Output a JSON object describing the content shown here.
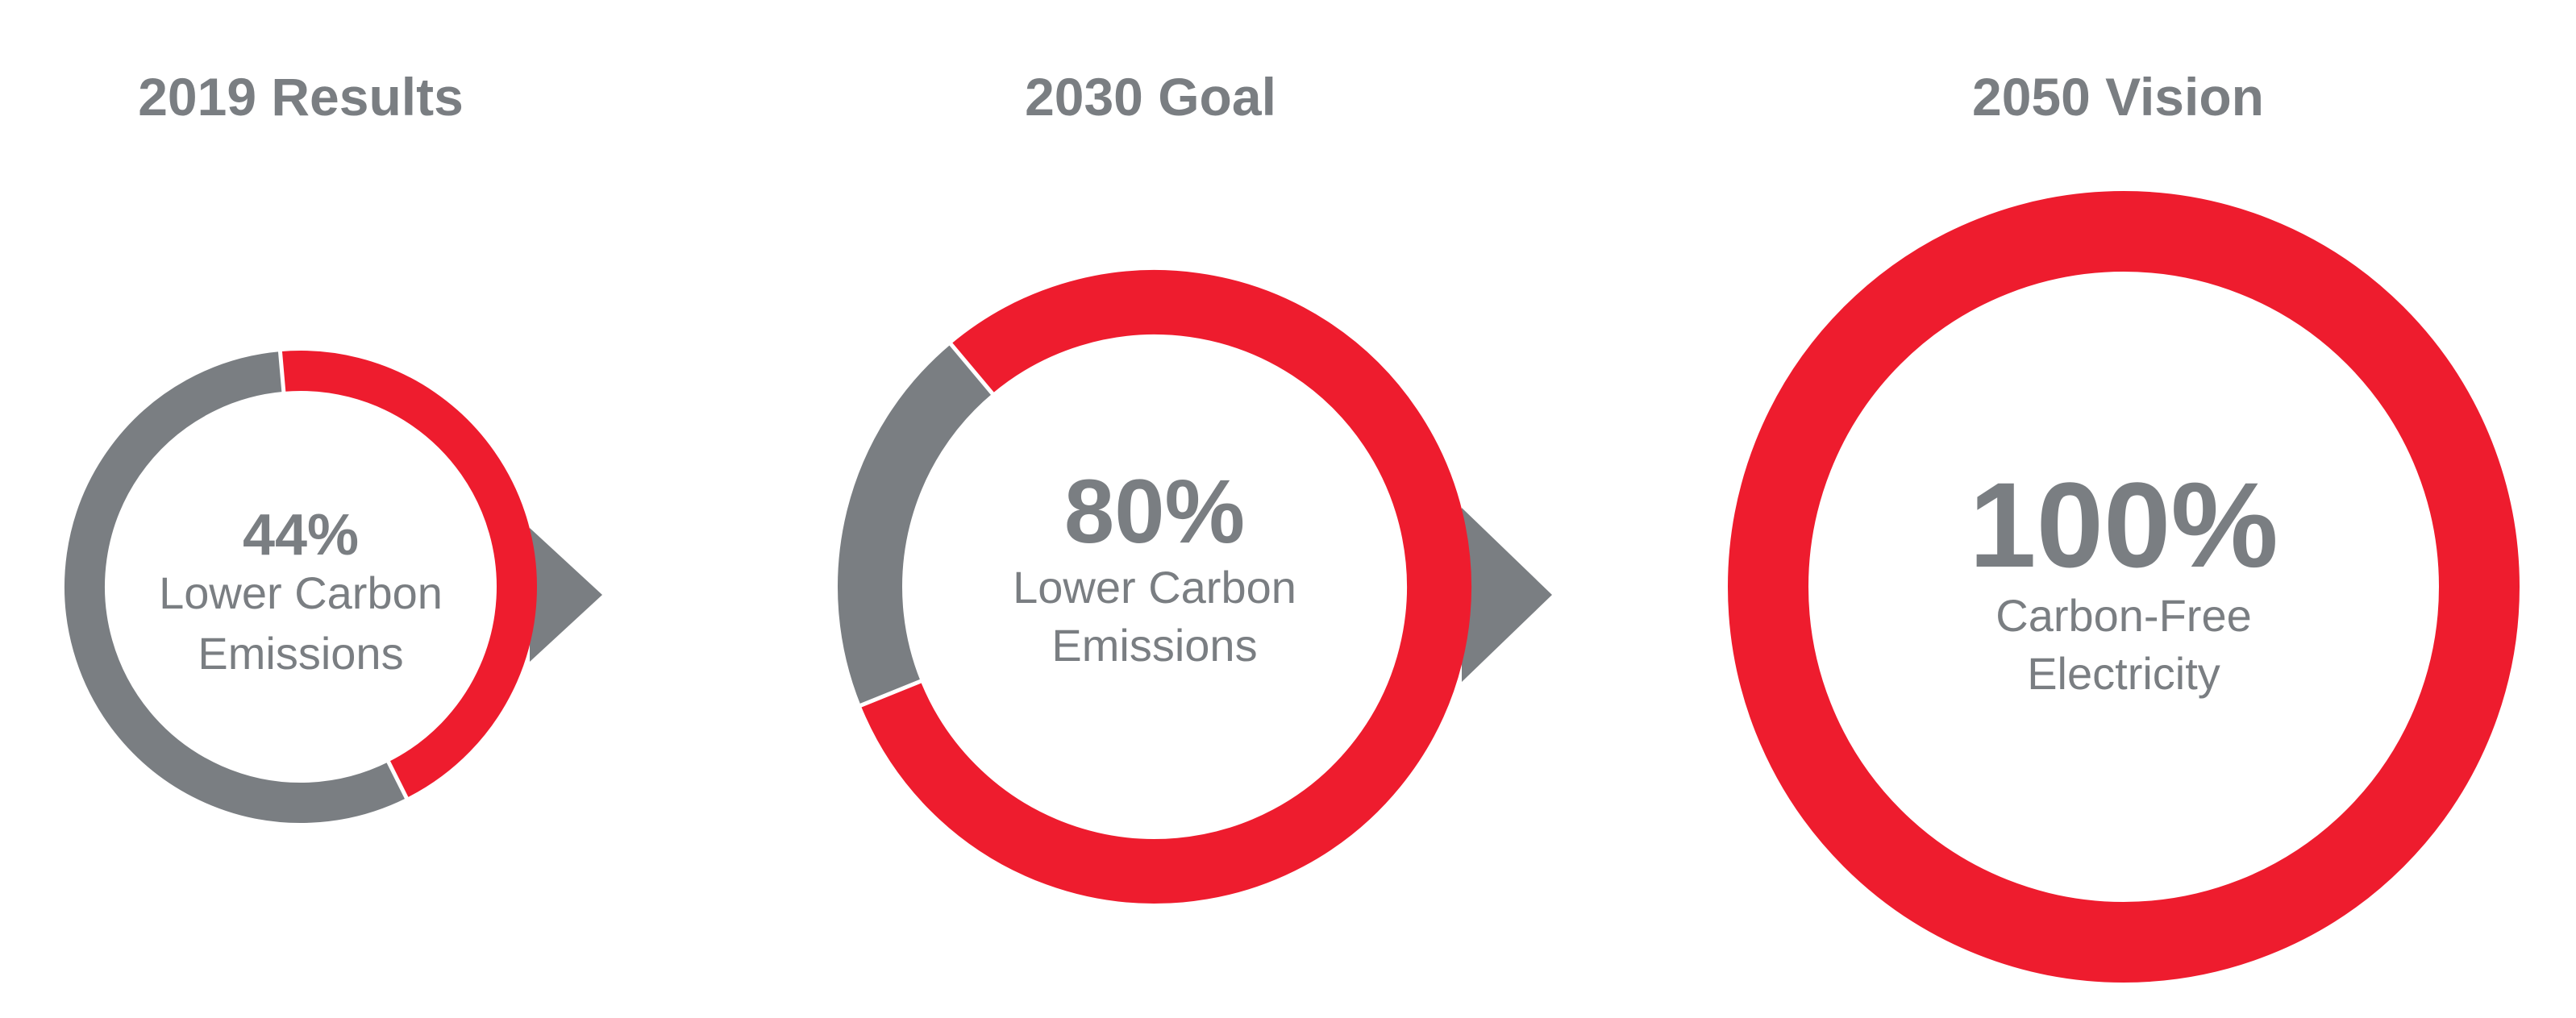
{
  "colors": {
    "accent": "#ee1c2e",
    "muted": "#7a7e82",
    "separator": "#ffffff"
  },
  "chart_data": [
    {
      "type": "pie",
      "title": "2019 Results",
      "value_label": "44%",
      "label_lines": [
        "Lower Carbon",
        "Emissions"
      ],
      "slices": [
        {
          "value": 44,
          "color": "#ee1c2e"
        },
        {
          "value": 56,
          "color": "#7a7e82"
        }
      ]
    },
    {
      "type": "pie",
      "title": "2030 Goal",
      "value_label": "80%",
      "label_lines": [
        "Lower Carbon",
        "Emissions"
      ],
      "slices": [
        {
          "value": 80,
          "color": "#ee1c2e"
        },
        {
          "value": 20,
          "color": "#7a7e82"
        }
      ]
    },
    {
      "type": "pie",
      "title": "2050 Vision",
      "value_label": "100%",
      "label_lines": [
        "Carbon-Free",
        "Electricity"
      ],
      "slices": [
        {
          "value": 100,
          "color": "#ee1c2e"
        }
      ]
    }
  ]
}
